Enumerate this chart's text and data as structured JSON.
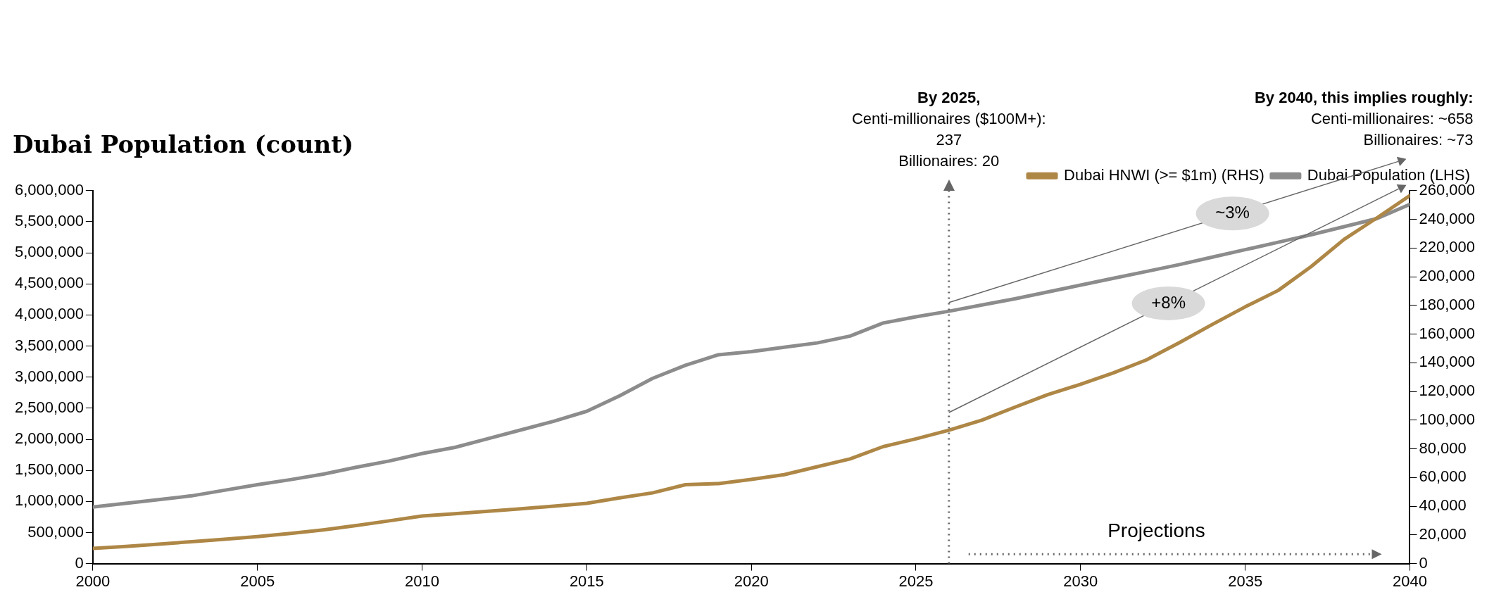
{
  "chart_data": {
    "type": "line",
    "title": "Dubai Population (count)",
    "x": [
      2000,
      2001,
      2002,
      2003,
      2004,
      2005,
      2006,
      2007,
      2008,
      2009,
      2010,
      2011,
      2012,
      2013,
      2014,
      2015,
      2016,
      2017,
      2018,
      2019,
      2020,
      2021,
      2022,
      2023,
      2024,
      2025,
      2026,
      2027,
      2028,
      2029,
      2030,
      2031,
      2032,
      2033,
      2034,
      2035,
      2036,
      2037,
      2038,
      2039,
      2040
    ],
    "series": [
      {
        "name": "Dubai HNWI (>= $1m) (RHS)",
        "color": "#ae8746",
        "axis": "y2",
        "values": [
          10600,
          12000,
          13500,
          15300,
          17000,
          18800,
          21000,
          23500,
          26500,
          29800,
          33200,
          34800,
          36500,
          38200,
          40000,
          42000,
          45800,
          49300,
          55000,
          55800,
          58700,
          62000,
          67500,
          73000,
          81500,
          87000,
          93000,
          100000,
          109000,
          117800,
          125000,
          133000,
          142000,
          154000,
          166700,
          179000,
          190400,
          207000,
          226000,
          241000,
          256600
        ]
      },
      {
        "name": "Dubai Population (LHS)",
        "color": "#8c8c8c",
        "axis": "y",
        "values": [
          910000,
          970000,
          1030000,
          1090000,
          1180000,
          1270000,
          1350000,
          1440000,
          1550000,
          1650000,
          1770000,
          1870000,
          2010000,
          2150000,
          2290000,
          2450000,
          2700000,
          2980000,
          3190000,
          3360000,
          3410000,
          3480000,
          3550000,
          3660000,
          3870000,
          3970000,
          4060000,
          4160000,
          4260000,
          4370000,
          4480000,
          4590000,
          4700000,
          4810000,
          4930000,
          5050000,
          5170000,
          5290000,
          5420000,
          5550000,
          5780000
        ]
      }
    ],
    "xlim": [
      2000,
      2040
    ],
    "xticks": [
      2000,
      2005,
      2010,
      2015,
      2020,
      2025,
      2030,
      2035,
      2040
    ],
    "ylim": [
      0,
      6000000
    ],
    "yticks": [
      0,
      {
        "value": 500000,
        "label": "500,000"
      },
      {
        "value": 1000000,
        "label": "1,000,000"
      },
      {
        "value": 1500000,
        "label": "1,500,000"
      },
      {
        "value": 2000000,
        "label": "2,000,000"
      },
      {
        "value": 2500000,
        "label": "2,500,000"
      },
      {
        "value": 3000000,
        "label": "3,000,000"
      },
      {
        "value": 3500000,
        "label": "3,500,000"
      },
      {
        "value": 4000000,
        "label": "4,000,000"
      },
      {
        "value": 4500000,
        "label": "4,500,000"
      },
      {
        "value": 5000000,
        "label": "5,000,000"
      },
      {
        "value": 5500000,
        "label": "5,500,000"
      },
      {
        "value": 6000000,
        "label": "6,000,000"
      }
    ],
    "y2lim": [
      0,
      260000
    ],
    "y2ticks": [
      0,
      {
        "value": 20000,
        "label": "20,000"
      },
      {
        "value": 40000,
        "label": "40,000"
      },
      {
        "value": 60000,
        "label": "60,000"
      },
      {
        "value": 80000,
        "label": "80,000"
      },
      {
        "value": 100000,
        "label": "100,000"
      },
      {
        "value": 120000,
        "label": "120,000"
      },
      {
        "value": 140000,
        "label": "140,000"
      },
      {
        "value": 160000,
        "label": "160,000"
      },
      {
        "value": 180000,
        "label": "180,000"
      },
      {
        "value": 200000,
        "label": "200,000"
      },
      {
        "value": 220000,
        "label": "220,000"
      },
      {
        "value": 240000,
        "label": "240,000"
      },
      {
        "value": 260000,
        "label": "260,000"
      }
    ],
    "ref_lines": [
      {
        "axis": "x",
        "value": 2026,
        "color": "#666666",
        "line_style": "dotted"
      }
    ],
    "annotations": [
      "~3%",
      "+8%",
      "Projections",
      "By 2040, this implies roughly:\nCenti-millionaires: ~658\nBillionaires: ~73",
      "By 2025,\nCenti-millionaires ($100M+):\n237\nBillionaires: 20"
    ],
    "legend": "top right",
    "grid": false,
    "marker": "none",
    "line_style": "solid"
  }
}
